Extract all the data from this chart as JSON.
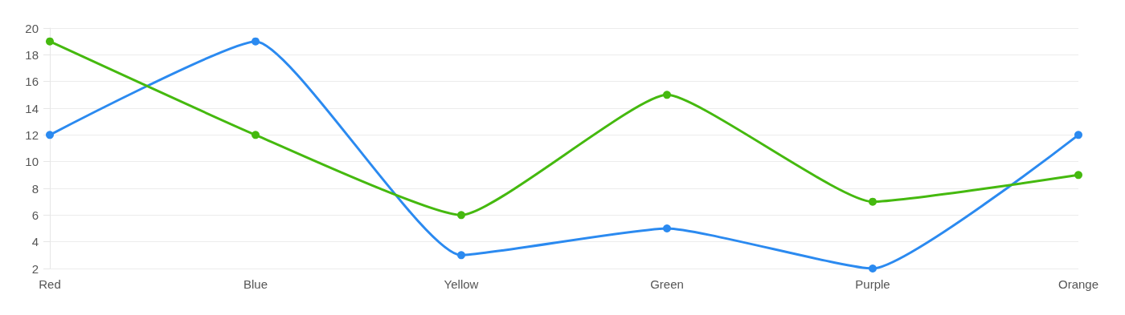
{
  "chart_data": {
    "type": "line",
    "categories": [
      "Red",
      "Blue",
      "Yellow",
      "Green",
      "Purple",
      "Orange"
    ],
    "series": [
      {
        "color": "#2b8af0",
        "values": [
          12,
          19,
          3,
          5,
          2,
          12
        ]
      },
      {
        "color": "#45b90f",
        "values": [
          19,
          12,
          6,
          15,
          7,
          9
        ]
      }
    ],
    "ylim": [
      2,
      20
    ],
    "yticks": [
      2,
      4,
      6,
      8,
      10,
      12,
      14,
      16,
      18,
      20
    ],
    "grid": "y",
    "marker": "circle",
    "line_style": "solid"
  }
}
